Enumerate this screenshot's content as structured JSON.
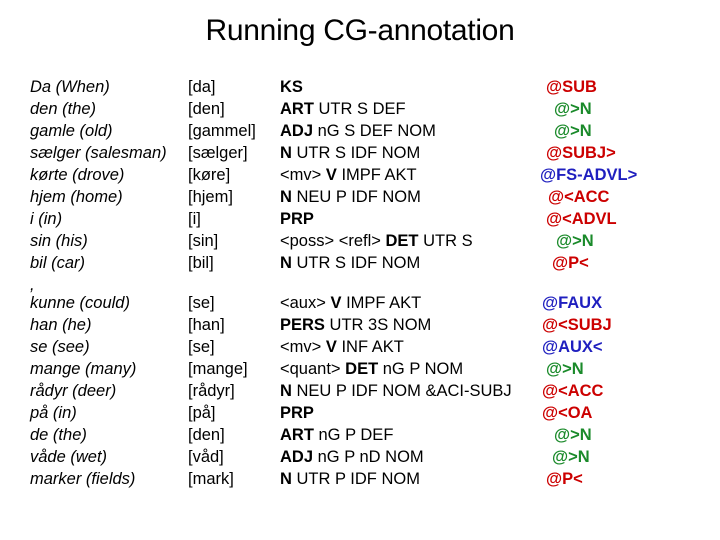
{
  "title": "Running CG-annotation",
  "colors": {
    "red": "#cc0000",
    "blue": "#1f1fbf",
    "green": "#1a8a2a",
    "text": "#000000"
  },
  "rows": [
    {
      "word": "Da (When)",
      "base": "[da]",
      "pre": "",
      "pos": "KS",
      "post": "",
      "func": "@SUB",
      "func_color": "red"
    },
    {
      "word": "den (the)",
      "base": "[den]",
      "pre": "",
      "pos": "ART",
      "post": " UTR S DEF",
      "func": "@>N",
      "func_color": "green"
    },
    {
      "word": "gamle (old)",
      "base": "[gammel]",
      "pre": "",
      "pos": "ADJ",
      "post": " nG S DEF NOM",
      "func": "@>N",
      "func_color": "green"
    },
    {
      "word": "sælger (salesman)",
      "base": "[sælger]",
      "pre": "",
      "pos": "N",
      "post": " UTR S IDF NOM",
      "func": "@SUBJ>",
      "func_color": "red"
    },
    {
      "word": "kørte (drove)",
      "base": "[køre]",
      "pre": "<mv> ",
      "pos": "V",
      "post": " IMPF AKT",
      "func": "@FS-ADVL>",
      "func_color": "blue"
    },
    {
      "word": "hjem (home)",
      "base": "[hjem]",
      "pre": "",
      "pos": "N",
      "post": " NEU P IDF NOM",
      "func": "@<ACC",
      "func_color": "red"
    },
    {
      "word": "i (in)",
      "base": "[i]",
      "pre": "",
      "pos": "PRP",
      "post": "",
      "func": "@<ADVL",
      "func_color": "red"
    },
    {
      "word": "sin (his)",
      "base": "[sin]",
      "pre": "<poss> <refl> ",
      "pos": "DET",
      "post": " UTR S",
      "func": "@>N",
      "func_color": "green"
    },
    {
      "word": "bil (car)",
      "base": "[bil]",
      "pre": "",
      "pos": "N",
      "post": " UTR S IDF NOM",
      "func": "@P<",
      "func_color": "red"
    },
    {
      "word": ",",
      "base": "",
      "pre": "",
      "pos": "",
      "post": "",
      "func": "",
      "func_color": "red"
    },
    {
      "word": "kunne (could)",
      "base": "[se]",
      "pre": "<aux> ",
      "pos": "V",
      "post": " IMPF AKT",
      "func": "@FAUX",
      "func_color": "blue"
    },
    {
      "word": "han (he)",
      "base": "[han]",
      "pre": "",
      "pos": "PERS",
      "post": " UTR 3S NOM",
      "func": "@<SUBJ",
      "func_color": "red"
    },
    {
      "word": "se (see)",
      "base": "[se]",
      "pre": "<mv> ",
      "pos": "V",
      "post": " INF AKT",
      "func": "@AUX<",
      "func_color": "blue"
    },
    {
      "word": "mange (many)",
      "base": "[mange]",
      "pre": "<quant> ",
      "pos": "DET",
      "post": " nG P NOM",
      "func": "@>N",
      "func_color": "green"
    },
    {
      "word": "rådyr (deer)",
      "base": "[rådyr]",
      "pre": "",
      "pos": "N",
      "post": " NEU P IDF NOM &ACI-SUBJ",
      "func": "@<ACC",
      "func_color": "red"
    },
    {
      "word": "på (in)",
      "base": "[på]",
      "pre": "",
      "pos": "PRP",
      "post": "",
      "func": "@<OA",
      "func_color": "red"
    },
    {
      "word": "de (the)",
      "base": "[den]",
      "pre": "",
      "pos": "ART",
      "post": " nG P DEF",
      "func": "@>N",
      "func_color": "green"
    },
    {
      "word": "våde (wet)",
      "base": "[våd]",
      "pre": "",
      "pos": "ADJ",
      "post": " nG P nD NOM",
      "func": "@>N",
      "func_color": "green"
    },
    {
      "word": "marker (fields)",
      "base": "[mark]",
      "pre": "",
      "pos": "N",
      "post": " UTR P IDF NOM",
      "func": "@P<",
      "func_color": "red"
    }
  ]
}
